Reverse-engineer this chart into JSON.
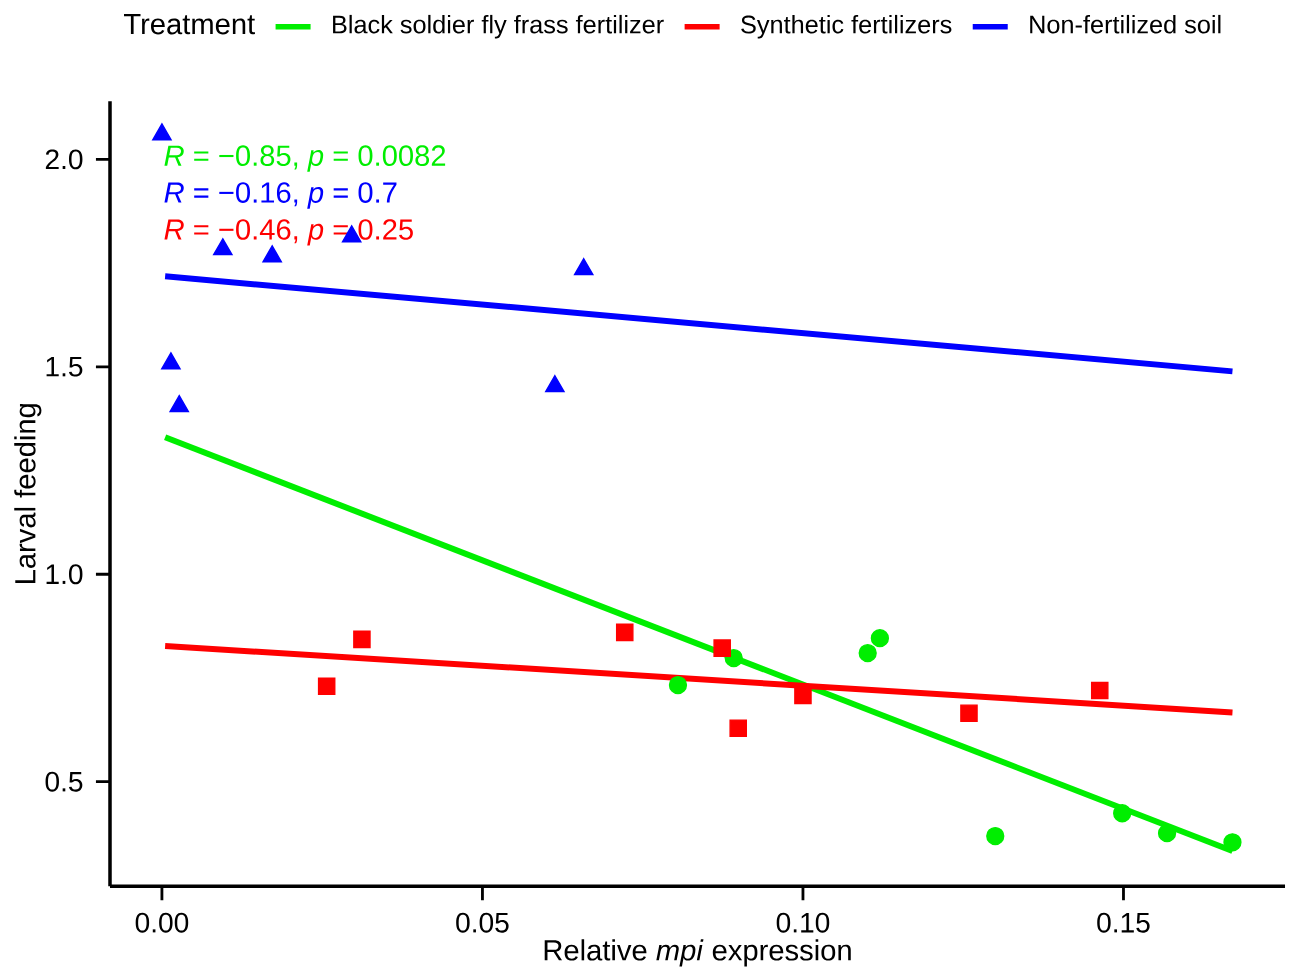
{
  "chart_data": {
    "type": "scatter",
    "xlabel": "Relative *mpi* expression",
    "ylabel": "Larval feeding",
    "legend_title": "Treatment",
    "xlim": [
      -0.0081,
      0.1752
    ],
    "ylim": [
      0.248,
      2.14
    ],
    "xticks": [
      {
        "value": 0,
        "label": "0.00"
      },
      {
        "value": 0.05,
        "label": "0.05"
      },
      {
        "value": 0.1,
        "label": "0.10"
      },
      {
        "value": 0.15,
        "label": "0.15"
      }
    ],
    "yticks": [
      {
        "value": 0.5,
        "label": "0.5"
      },
      {
        "value": 1.0,
        "label": "1.0"
      },
      {
        "value": 1.5,
        "label": "1.5"
      },
      {
        "value": 2.0,
        "label": "2.0"
      }
    ],
    "grid": false,
    "legend": "top",
    "annotations": [
      "*R* = −0.85, *p* = 0.0082",
      "*R* = −0.16, *p* = 0.7",
      "*R* = −0.46, *p* = 0.25"
    ],
    "series": [
      {
        "marker": "circle",
        "color": "#00ee00",
        "x": [
          0.0805,
          0.0892,
          0.1101,
          0.112,
          0.13,
          0.1498,
          0.1568,
          0.167
        ],
        "values": [
          0.733,
          0.798,
          0.81,
          0.846,
          0.369,
          0.424,
          0.376,
          0.354
        ]
      },
      {
        "marker": "square",
        "color": "#ff0000",
        "x": [
          0.0257,
          0.0312,
          0.0722,
          0.0874,
          0.0899,
          0.1,
          0.1259,
          0.1463
        ],
        "values": [
          0.73,
          0.843,
          0.86,
          0.822,
          0.629,
          0.708,
          0.665,
          0.72
        ]
      },
      {
        "marker": "triangle",
        "color": "#0000ff",
        "x": [
          0.0,
          0.0014,
          0.0027,
          0.0095,
          0.0172,
          0.0296,
          0.0613,
          0.0658
        ],
        "values": [
          2.06,
          1.508,
          1.405,
          1.783,
          1.766,
          1.814,
          1.453,
          1.735
        ]
      },
      {
        "type": "line",
        "name": "Black soldier fly frass fertilizer",
        "color": "#00ee00",
        "marker": "none",
        "x": [
          0.0005,
          0.167
        ],
        "values": [
          1.33,
          0.333
        ]
      },
      {
        "type": "line",
        "name": "Synthetic fertilizers",
        "color": "#ff0000",
        "marker": "none",
        "x": [
          0.0005,
          0.167
        ],
        "values": [
          0.827,
          0.667
        ]
      },
      {
        "type": "line",
        "name": "Non-fertilized soil",
        "color": "#0000ff",
        "marker": "none",
        "x": [
          0.0005,
          0.167
        ],
        "values": [
          1.718,
          1.489
        ]
      }
    ]
  }
}
